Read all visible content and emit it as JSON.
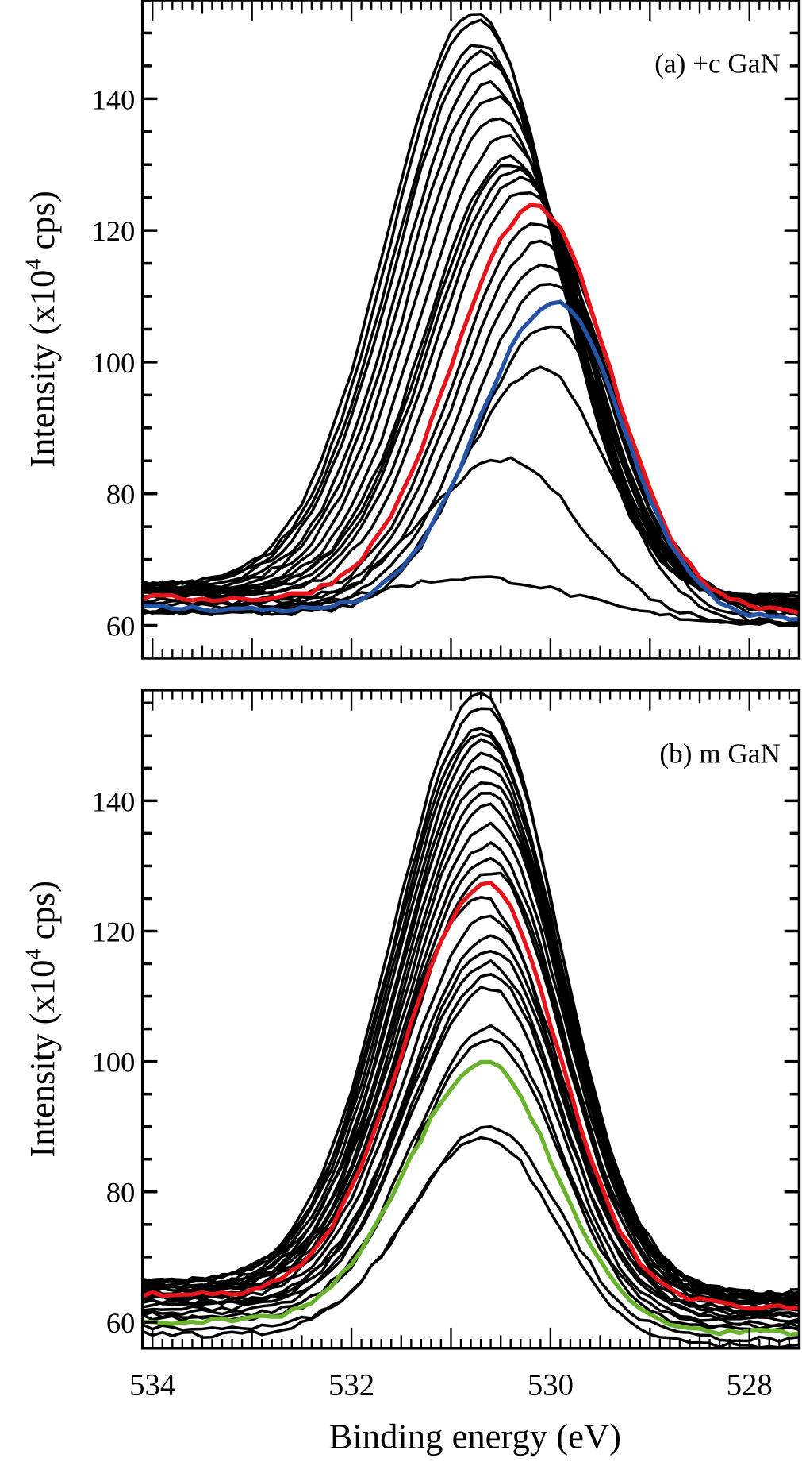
{
  "chart_data": [
    {
      "type": "line",
      "panel_label": "(a) +c GaN",
      "ylabel": "Intensity (x10",
      "ylabel_sup": "4",
      "ylabel_tail": " cps)",
      "xlabel": "",
      "xlim": [
        534.1,
        527.5
      ],
      "ylim": [
        55,
        155
      ],
      "xticks": [
        "534",
        "532",
        "530",
        "528"
      ],
      "yticks": [
        "60",
        "80",
        "100",
        "120",
        "140"
      ],
      "series_model": "gaussian peak: [center_eV, peak_intensity, baseline, fwhm_eV, color]",
      "series": [
        [
          530.75,
          153,
          65,
          1.95,
          "#000000"
        ],
        [
          530.72,
          152,
          65,
          1.93,
          "#000000"
        ],
        [
          530.7,
          148,
          65,
          1.92,
          "#000000"
        ],
        [
          530.68,
          147,
          65,
          1.9,
          "#000000"
        ],
        [
          530.62,
          145,
          64.5,
          1.9,
          "#000000"
        ],
        [
          530.6,
          142,
          64.5,
          1.88,
          "#000000"
        ],
        [
          530.55,
          140,
          64.5,
          1.88,
          "#000000"
        ],
        [
          530.52,
          137,
          64,
          1.86,
          "#000000"
        ],
        [
          530.45,
          134,
          64,
          1.86,
          "#000000"
        ],
        [
          530.4,
          131,
          64,
          1.85,
          "#000000"
        ],
        [
          530.38,
          130,
          64,
          1.85,
          "#000000"
        ],
        [
          530.35,
          129,
          64,
          1.84,
          "#000000"
        ],
        [
          530.3,
          128,
          63.5,
          1.84,
          "#000000"
        ],
        [
          530.25,
          126,
          63.5,
          1.82,
          "#000000"
        ],
        [
          530.15,
          123.5,
          63,
          1.82,
          "#e8141b"
        ],
        [
          530.12,
          121,
          63,
          1.8,
          "#000000"
        ],
        [
          530.1,
          118,
          62.5,
          1.78,
          "#000000"
        ],
        [
          530.05,
          115,
          62.5,
          1.76,
          "#000000"
        ],
        [
          530.0,
          112,
          62,
          1.72,
          "#000000"
        ],
        [
          529.95,
          109,
          61.5,
          1.7,
          "#2553a5"
        ],
        [
          530.0,
          105.5,
          61,
          1.68,
          "#000000"
        ],
        [
          530.1,
          99,
          61,
          1.7,
          "#000000"
        ],
        [
          530.45,
          85,
          61,
          1.85,
          "#000000"
        ],
        [
          530.7,
          67,
          61,
          2.3,
          "#000000"
        ]
      ]
    },
    {
      "type": "line",
      "panel_label": "(b) m GaN",
      "ylabel": "Intensity (x10",
      "ylabel_sup": "4",
      "ylabel_tail": " cps)",
      "xlabel": "Binding energy (eV)",
      "xlim": [
        534.1,
        527.5
      ],
      "ylim": [
        56,
        157
      ],
      "xticks": [
        "534",
        "532",
        "530",
        "528"
      ],
      "yticks": [
        "60",
        "80",
        "100",
        "120",
        "140"
      ],
      "series_model": "gaussian peak: [center_eV, peak_intensity, baseline, fwhm_eV, color]",
      "series": [
        [
          530.7,
          156,
          65,
          1.9,
          "#000000"
        ],
        [
          530.68,
          154,
          65,
          1.9,
          "#000000"
        ],
        [
          530.7,
          151,
          65,
          1.88,
          "#000000"
        ],
        [
          530.68,
          150,
          65,
          1.88,
          "#000000"
        ],
        [
          530.66,
          149,
          64.5,
          1.88,
          "#000000"
        ],
        [
          530.65,
          147,
          64.5,
          1.86,
          "#000000"
        ],
        [
          530.65,
          145,
          64.5,
          1.86,
          "#000000"
        ],
        [
          530.64,
          143,
          64,
          1.85,
          "#000000"
        ],
        [
          530.63,
          141,
          64,
          1.85,
          "#000000"
        ],
        [
          530.62,
          139,
          64,
          1.84,
          "#000000"
        ],
        [
          530.62,
          136,
          63.5,
          1.84,
          "#000000"
        ],
        [
          530.62,
          133,
          63.5,
          1.82,
          "#000000"
        ],
        [
          530.62,
          131,
          63,
          1.82,
          "#000000"
        ],
        [
          530.6,
          129,
          63,
          1.8,
          "#000000"
        ],
        [
          530.65,
          127,
          63,
          1.8,
          "#e8141b"
        ],
        [
          530.7,
          125,
          62.5,
          1.82,
          "#000000"
        ],
        [
          530.62,
          122,
          62.5,
          1.78,
          "#000000"
        ],
        [
          530.6,
          119,
          62,
          1.76,
          "#000000"
        ],
        [
          530.6,
          117,
          62,
          1.76,
          "#000000"
        ],
        [
          530.62,
          115,
          61.5,
          1.74,
          "#000000"
        ],
        [
          530.6,
          113,
          61,
          1.74,
          "#000000"
        ],
        [
          530.62,
          111,
          60.5,
          1.72,
          "#000000"
        ],
        [
          530.6,
          105,
          60,
          1.7,
          "#000000"
        ],
        [
          530.6,
          103,
          59.5,
          1.7,
          "#000000"
        ],
        [
          530.65,
          99.5,
          59,
          1.72,
          "#6ab42d"
        ],
        [
          530.6,
          90,
          58,
          1.7,
          "#000000"
        ],
        [
          530.65,
          88,
          57,
          1.72,
          "#000000"
        ]
      ]
    }
  ]
}
